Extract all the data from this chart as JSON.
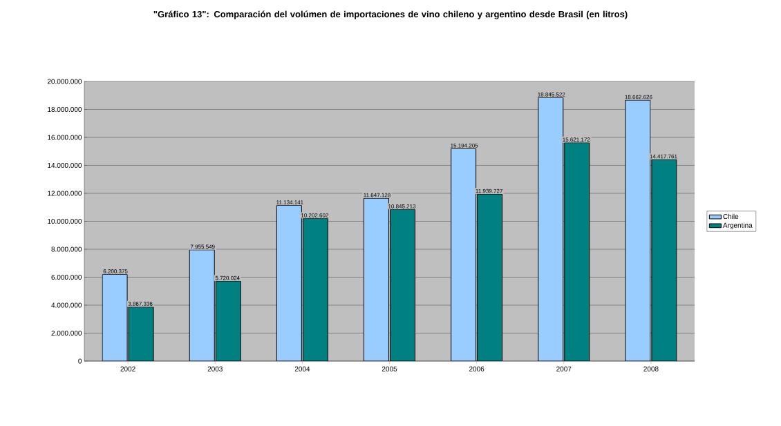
{
  "chart_data": {
    "type": "bar",
    "title": "\"Gráfico 13\": Comparación del volúmen de importaciones de vino chileno y argentino desde Brasil (en litros)",
    "categories": [
      "2002",
      "2003",
      "2004",
      "2005",
      "2006",
      "2007",
      "2008"
    ],
    "series": [
      {
        "name": "Chile",
        "color": "#99ccff",
        "values": [
          6200375,
          7955549,
          11134141,
          11647128,
          15194205,
          18845522,
          18662626
        ],
        "value_labels": [
          "6.200.375",
          "7.955.549",
          "11.134.141",
          "11.647.128",
          "15.194.205",
          "18.845.522",
          "18.662.626"
        ]
      },
      {
        "name": "Argentina",
        "color": "#008080",
        "values": [
          3867336,
          5720024,
          10202602,
          10845213,
          11939727,
          15621172,
          14417761
        ],
        "value_labels": [
          "3.867.336",
          "5.720.024",
          "10.202.602",
          "10.845.213",
          "11.939.727",
          "15.621.172",
          "14.417.761"
        ]
      }
    ],
    "ylim": [
      0,
      20000000
    ],
    "yticks": [
      0,
      {
        "value": 2000000,
        "label": "2.000.000"
      },
      {
        "value": 4000000,
        "label": "4.000.000"
      },
      {
        "value": 6000000,
        "label": "6.000.000"
      },
      {
        "value": 8000000,
        "label": "8.000.000"
      },
      {
        "value": 10000000,
        "label": "10.000.000"
      },
      {
        "value": 12000000,
        "label": "12.000.000"
      },
      {
        "value": 14000000,
        "label": "14.000.000"
      },
      {
        "value": 16000000,
        "label": "16.000.000"
      },
      {
        "value": 18000000,
        "label": "18.000.000"
      },
      {
        "value": 20000000,
        "label": "20.000.000"
      }
    ],
    "grid": "y",
    "legend": "right"
  }
}
